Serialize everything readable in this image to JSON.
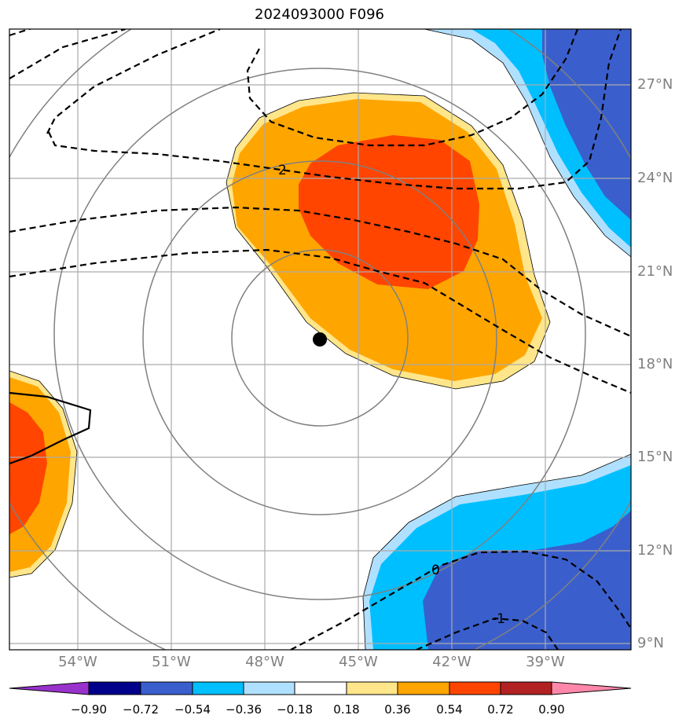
{
  "title": "2024093000 F096",
  "lat_labels": [
    "27°N",
    "24°N",
    "21°N",
    "18°N",
    "15°N",
    "12°N",
    "9°N"
  ],
  "lon_labels": [
    "54°W",
    "51°W",
    "48°W",
    "45°W",
    "42°W",
    "39°W"
  ],
  "colorbar": {
    "labels": [
      "−0.90",
      "−0.72",
      "−0.54",
      "−0.36",
      "−0.18",
      "0.18",
      "0.36",
      "0.54",
      "0.72",
      "0.90"
    ],
    "colors": [
      "#9932cc",
      "#00008b",
      "#3a5fcd",
      "#00bfff",
      "#b0e0ff",
      "#ffffff",
      "#ffe68a",
      "#ffa500",
      "#ff4500",
      "#b22222",
      "#ff88aa"
    ]
  },
  "contour_labels": [
    "2",
    "0",
    "-1"
  ],
  "storm_center": {
    "lat": 18.8,
    "lon": "46.3°W"
  }
}
